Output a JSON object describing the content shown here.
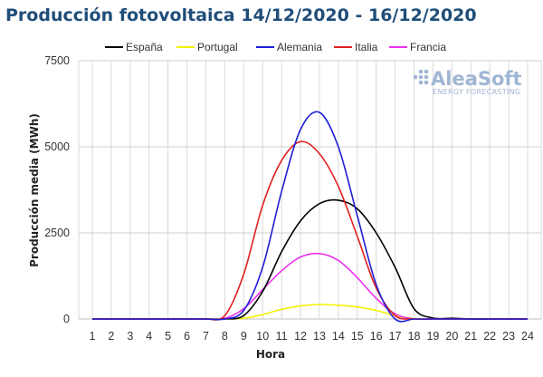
{
  "chart_data": {
    "type": "line",
    "title": "Producción fotovoltaica 14/12/2020 - 16/12/2020",
    "xlabel": "Hora",
    "ylabel": "Producción media (MWh)",
    "x": [
      1,
      2,
      3,
      4,
      5,
      6,
      7,
      8,
      9,
      10,
      11,
      12,
      13,
      14,
      15,
      16,
      17,
      18,
      19,
      20,
      21,
      22,
      23,
      24
    ],
    "xlim": [
      1,
      24
    ],
    "ylim": [
      0,
      7500
    ],
    "yticks": [
      0,
      2500,
      5000,
      7500
    ],
    "grid": "vertical and horizontal",
    "legend": "top",
    "series": [
      {
        "name": "España",
        "color": "#000000",
        "values": [
          0,
          0,
          0,
          0,
          0,
          0,
          0,
          0,
          100,
          800,
          1950,
          2850,
          3350,
          3450,
          3200,
          2500,
          1500,
          300,
          30,
          20,
          0,
          0,
          0,
          0
        ]
      },
      {
        "name": "Portugal",
        "color": "#f2f200",
        "values": [
          0,
          0,
          0,
          0,
          0,
          0,
          0,
          0,
          20,
          130,
          280,
          380,
          420,
          400,
          350,
          250,
          100,
          10,
          0,
          0,
          0,
          0,
          0,
          0
        ]
      },
      {
        "name": "Alemania",
        "color": "#1f1fd6",
        "values": [
          0,
          0,
          0,
          0,
          0,
          0,
          0,
          0,
          250,
          1500,
          3700,
          5500,
          6000,
          5000,
          3000,
          1000,
          0,
          0,
          0,
          0,
          0,
          0,
          0,
          0
        ]
      },
      {
        "name": "Italia",
        "color": "#e02020",
        "values": [
          0,
          0,
          0,
          0,
          0,
          0,
          0,
          100,
          1300,
          3300,
          4600,
          5150,
          4800,
          3850,
          2400,
          900,
          100,
          0,
          0,
          0,
          0,
          0,
          0,
          0
        ]
      },
      {
        "name": "Francia",
        "color": "#ee30ee",
        "values": [
          0,
          0,
          0,
          0,
          0,
          0,
          0,
          20,
          300,
          850,
          1400,
          1800,
          1900,
          1700,
          1200,
          600,
          150,
          0,
          0,
          0,
          0,
          0,
          0,
          0
        ]
      }
    ]
  },
  "watermark": {
    "brand": "AleaSoft",
    "tagline": "ENERGY FORECASTING"
  }
}
